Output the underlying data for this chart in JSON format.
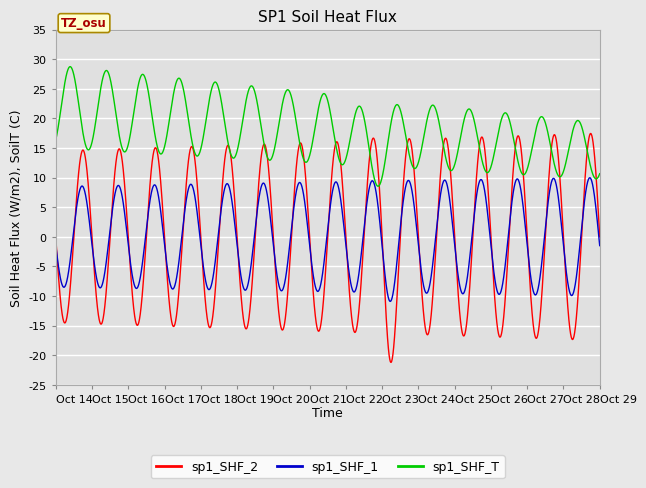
{
  "title": "SP1 Soil Heat Flux",
  "xlabel": "Time",
  "ylabel": "Soil Heat Flux (W/m2), SoilT (C)",
  "ylim": [
    -25,
    35
  ],
  "figure_bg": "#e8e8e8",
  "plot_bg": "#e0e0e0",
  "grid_color": "#ffffff",
  "tz_label": "TZ_osu",
  "tz_color": "#aa0000",
  "tz_bg": "#ffffcc",
  "tz_edge": "#aa8800",
  "xtick_labels": [
    "Oct 14",
    "Oct 15",
    "Oct 16",
    "Oct 17",
    "Oct 18",
    "Oct 19",
    "Oct 20",
    "Oct 21",
    "Oct 22",
    "Oct 23",
    "Oct 24",
    "Oct 25",
    "Oct 26",
    "Oct 27",
    "Oct 28",
    "Oct 29"
  ],
  "legend_entries": [
    "sp1_SHF_2",
    "sp1_SHF_1",
    "sp1_SHF_T"
  ],
  "line_colors": [
    "#ff0000",
    "#0000cc",
    "#00cc00"
  ],
  "title_fontsize": 11,
  "axis_fontsize": 9,
  "tick_fontsize": 8
}
